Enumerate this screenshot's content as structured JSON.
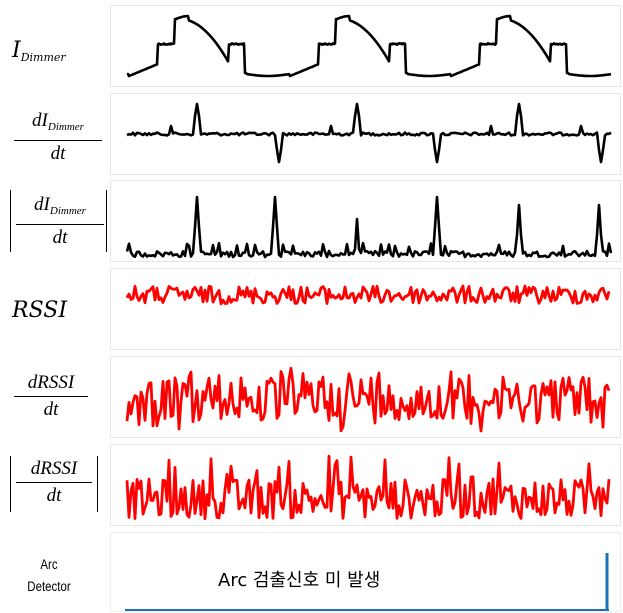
{
  "rows": [
    {
      "id": "i_dimmer",
      "var": "I",
      "sub": "Dimmer",
      "color": "#000000"
    },
    {
      "id": "d_i_dimmer",
      "num_var": "dI",
      "sub": "Dimmer",
      "den": "dt",
      "color": "#000000"
    },
    {
      "id": "abs_d_i_dimmer",
      "num_var": "dI",
      "sub": "Dimmer",
      "den": "dt",
      "color": "#000000"
    },
    {
      "id": "rssi",
      "var": "RSSI",
      "color": "#ff0000"
    },
    {
      "id": "d_rssi",
      "num_var": "dRSSI",
      "den": "dt",
      "color": "#ff0000"
    },
    {
      "id": "abs_d_rssi",
      "num_var": "dRSSI",
      "den": "dt",
      "color": "#ff0000"
    }
  ],
  "arc": {
    "label_line1": "Arc",
    "label_line2": "Detector",
    "message": "Arc 검출신호 미 발생",
    "line_color": "#1a73b8"
  }
}
